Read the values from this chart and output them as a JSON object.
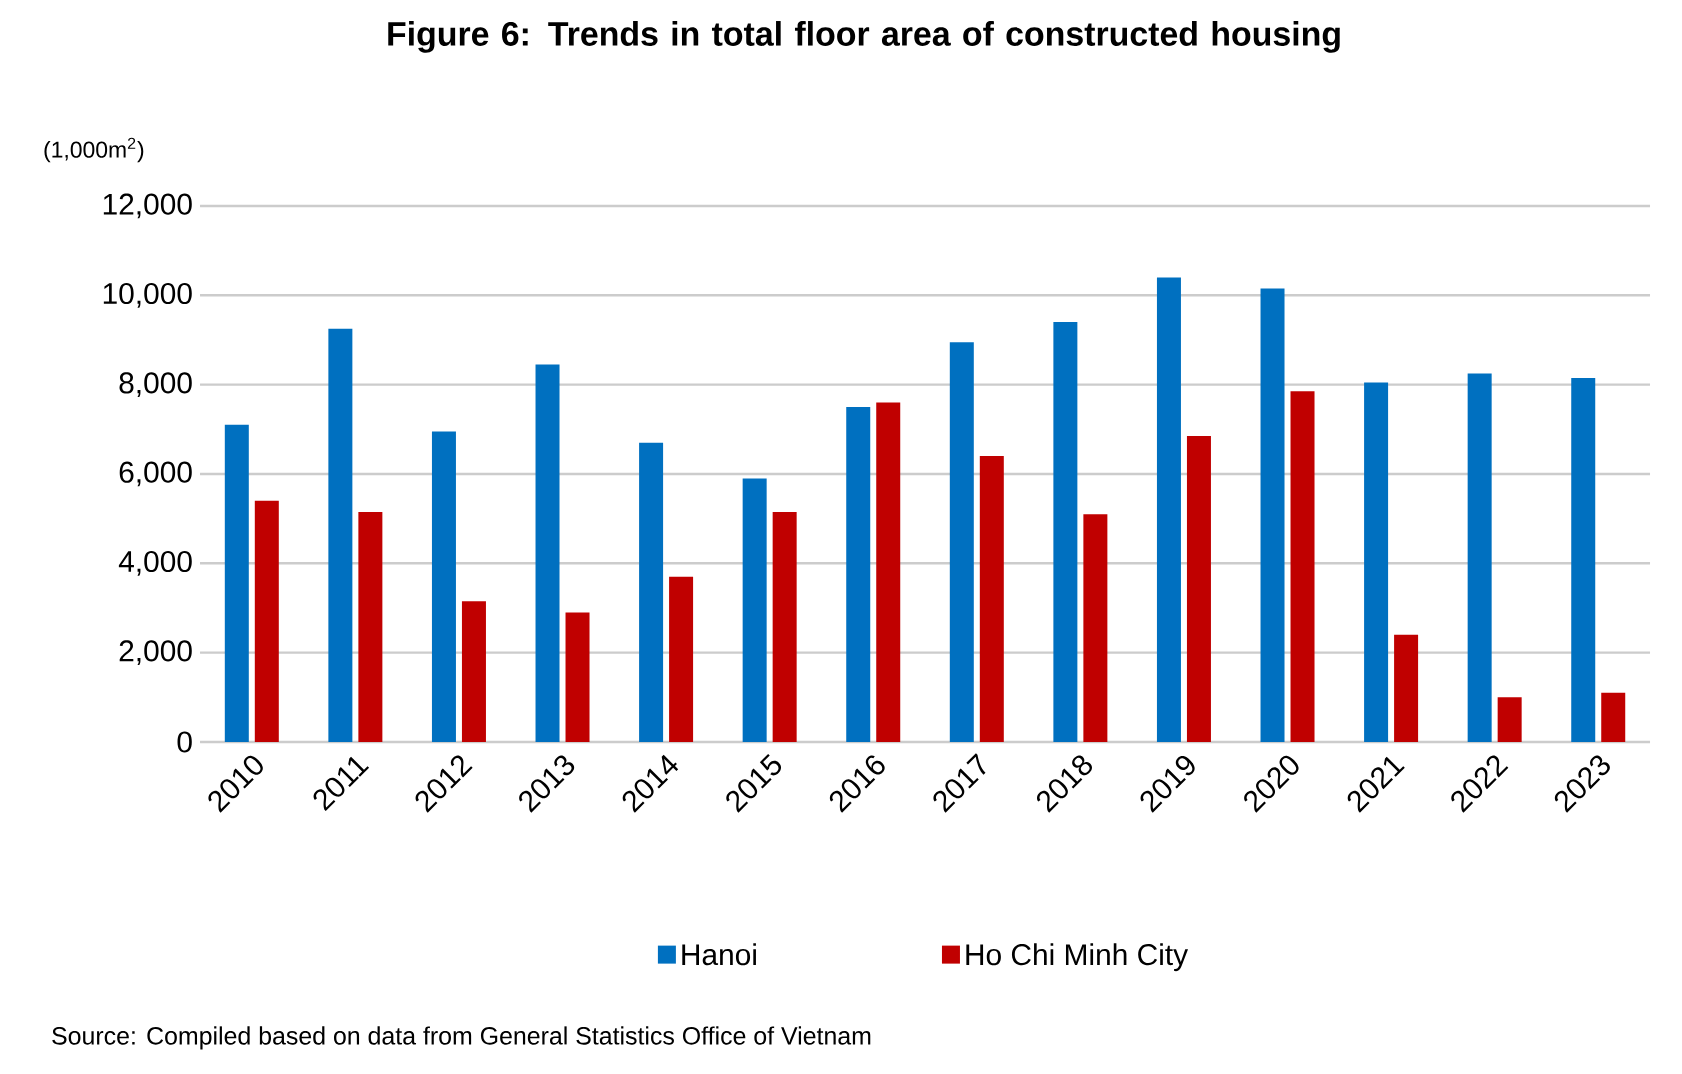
{
  "chart_data": {
    "type": "bar",
    "title": "Figure 6: Trends in total floor area of constructed housing",
    "ylabel": "(1,000m$^{2}$)",
    "categories": [
      "2010",
      "2011",
      "2012",
      "2013",
      "2014",
      "2015",
      "2016",
      "2017",
      "2018",
      "2019",
      "2020",
      "2021",
      "2022",
      "2023"
    ],
    "series": [
      {
        "name": "Hanoi",
        "color": "#0070c0",
        "values": [
          7100,
          9250,
          6950,
          8450,
          6700,
          5900,
          7500,
          8950,
          9400,
          10400,
          10150,
          8050,
          8250,
          8150
        ]
      },
      {
        "name": "Ho Chi Minh City",
        "color": "#c00000",
        "values": [
          5400,
          5150,
          3150,
          2900,
          3700,
          5150,
          7600,
          6400,
          5100,
          6850,
          7850,
          2400,
          1000,
          1100
        ]
      }
    ],
    "ylim": [
      0,
      12000
    ],
    "yticks": [
      0,
      {
        "value": 2000,
        "label": "2,000"
      },
      {
        "value": 4000,
        "label": "4,000"
      },
      {
        "value": 6000,
        "label": "6,000"
      },
      {
        "value": 8000,
        "label": "8,000"
      },
      {
        "value": 10000,
        "label": "10,000"
      },
      {
        "value": 12000,
        "label": "12,000"
      }
    ],
    "grid": "y",
    "legend": "bottom",
    "annotations": [
      "Source: Compiled based on data from General Statistics Office of Vietnam"
    ]
  }
}
